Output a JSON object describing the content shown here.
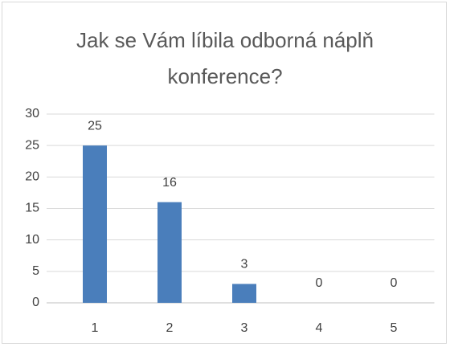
{
  "chart_data": {
    "type": "bar",
    "title": "Jak se Vám líbila odborná náplň konference?",
    "categories": [
      "1",
      "2",
      "3",
      "4",
      "5"
    ],
    "values": [
      25,
      16,
      3,
      0,
      0
    ],
    "color": "#4a7ebb",
    "ylim": [
      0,
      30
    ],
    "yticks": [
      0,
      5,
      10,
      15,
      20,
      25,
      30
    ],
    "grid": true,
    "data_labels": true
  }
}
